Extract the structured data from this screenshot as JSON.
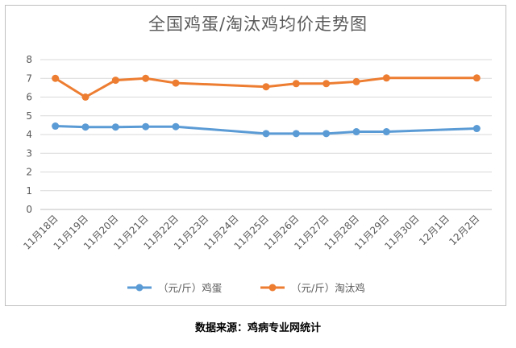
{
  "chart_data": {
    "type": "line",
    "title": "全国鸡蛋/淘汰鸡均价走势图",
    "xlabel": "",
    "ylabel": "",
    "categories": [
      "11月18日",
      "11月19日",
      "11月20日",
      "11月21日",
      "11月22日",
      "11月23日",
      "11月24日",
      "11月25日",
      "11月26日",
      "11月27日",
      "11月28日",
      "11月29日",
      "11月30日",
      "12月1日",
      "12月2日"
    ],
    "ylim": [
      0,
      8
    ],
    "yticks": [
      0,
      1,
      2,
      3,
      4,
      5,
      6,
      7,
      8
    ],
    "grid": true,
    "legend_position": "bottom",
    "series": [
      {
        "name": "（元/斤）鸡蛋",
        "color": "#5b9bd5",
        "values": [
          4.45,
          4.4,
          4.4,
          4.42,
          4.42,
          null,
          null,
          4.05,
          4.05,
          4.05,
          4.15,
          4.15,
          null,
          null,
          4.32
        ]
      },
      {
        "name": "（元/斤）淘汰鸡",
        "color": "#ed7d31",
        "values": [
          7.0,
          6.0,
          6.9,
          7.0,
          6.75,
          null,
          null,
          6.55,
          6.72,
          6.72,
          6.82,
          7.02,
          null,
          null,
          7.02
        ]
      }
    ]
  },
  "source_note": "数据来源：鸡病专业网统计"
}
